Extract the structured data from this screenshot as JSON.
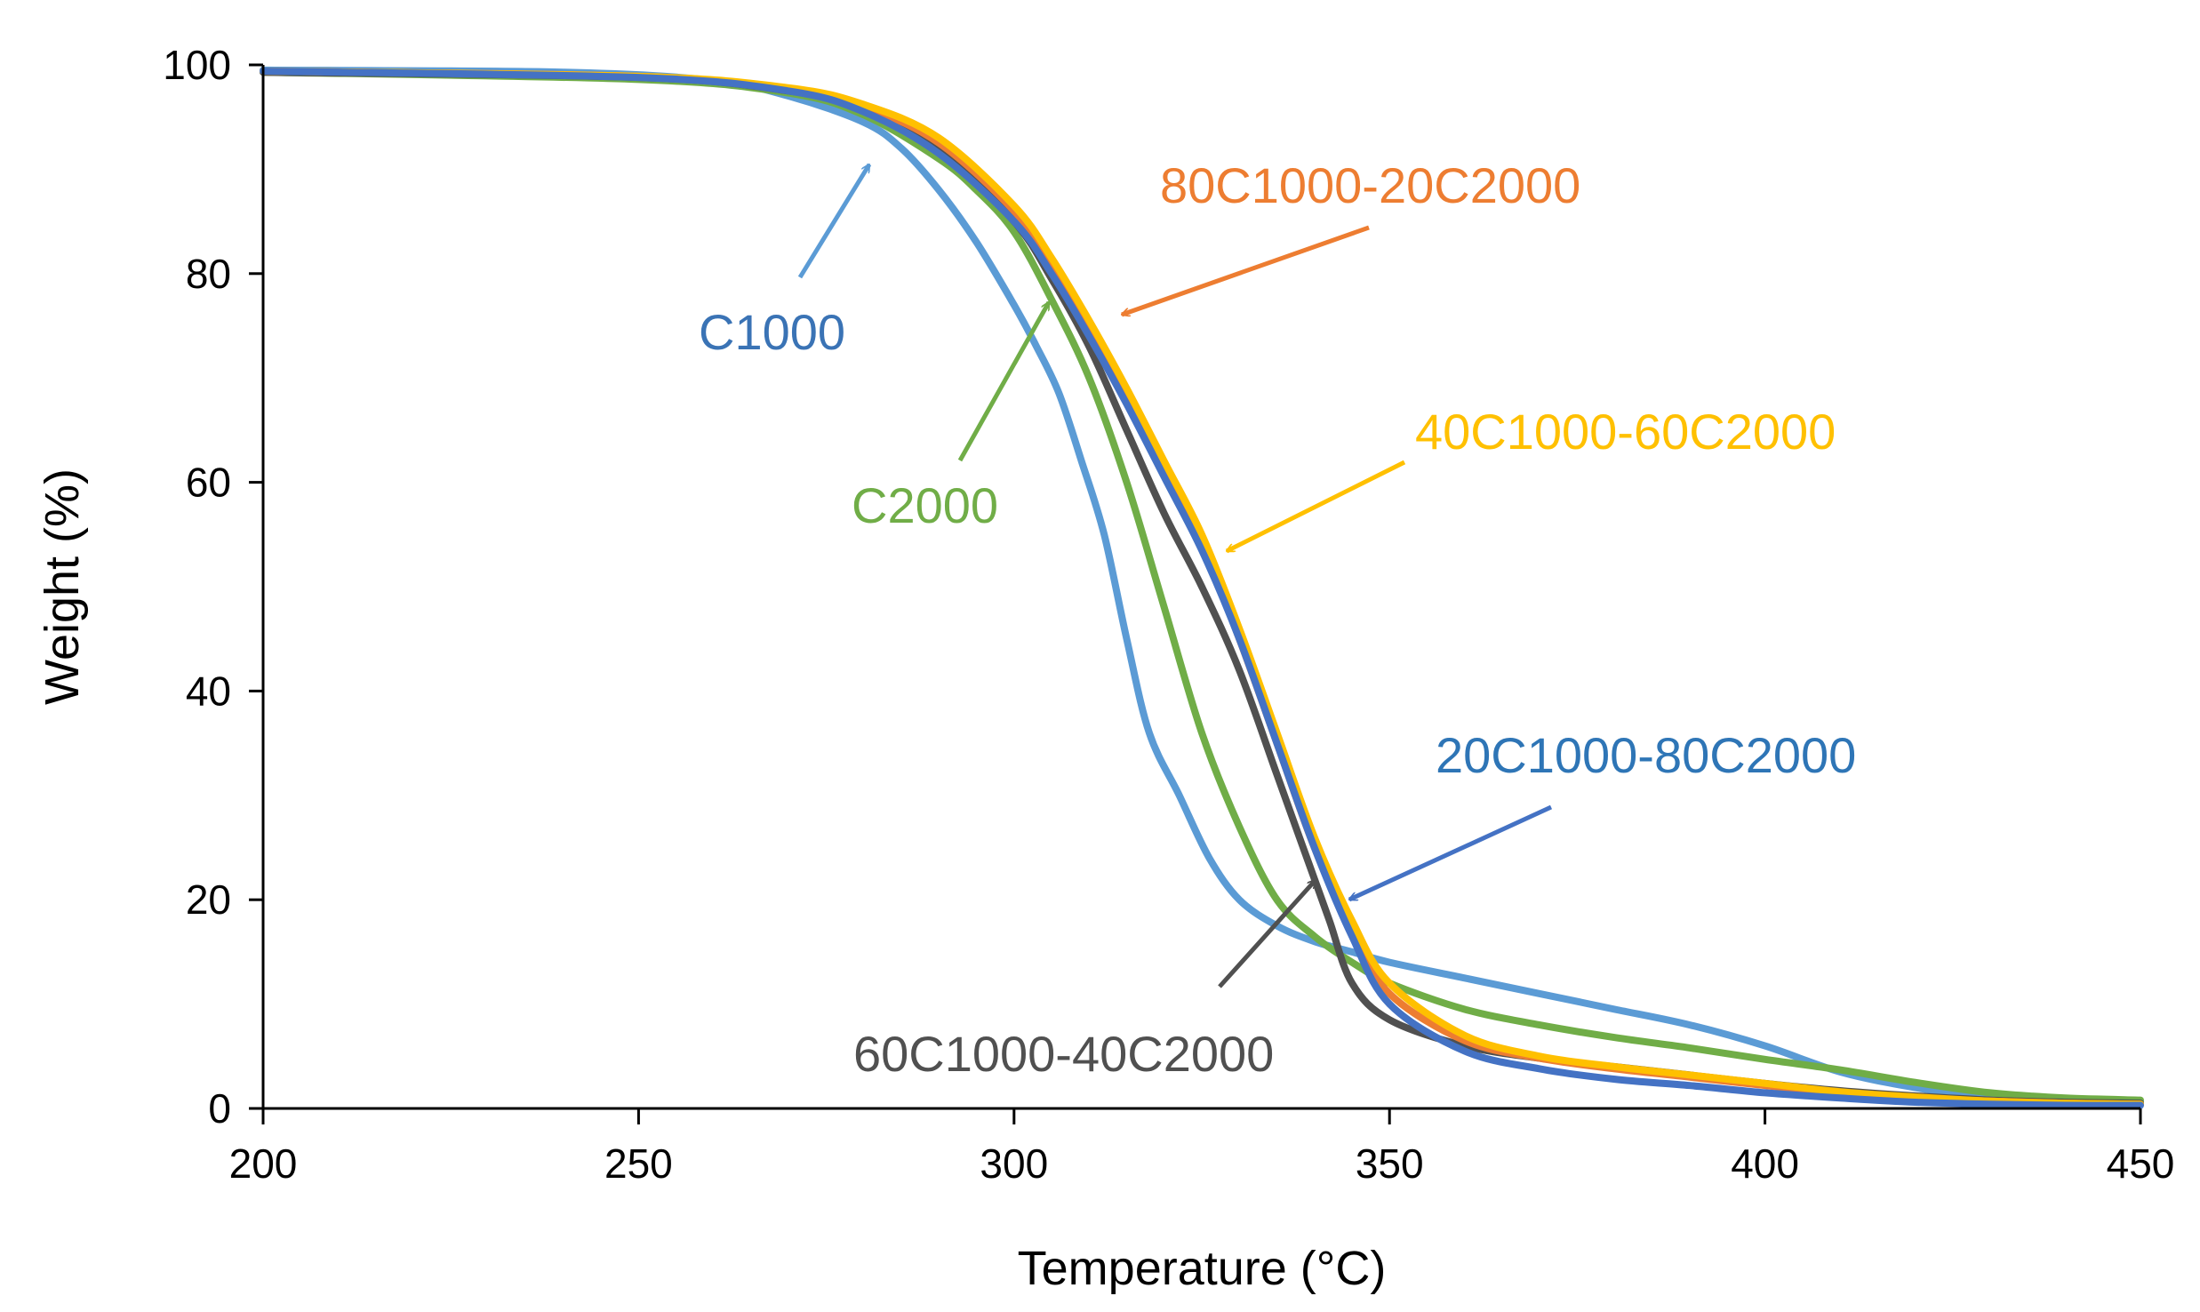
{
  "chart_data": {
    "type": "line",
    "xlabel": "Temperature  (°C)",
    "ylabel": "Weight (%)",
    "xlim": [
      200,
      450
    ],
    "ylim": [
      0,
      100
    ],
    "xticks": [
      200,
      250,
      300,
      350,
      400,
      450
    ],
    "yticks": [
      0,
      20,
      40,
      60,
      80,
      100
    ],
    "grid": false,
    "legend": "none (series labeled inline with arrows)",
    "series": [
      {
        "name": "C1000",
        "color": "#5B9BD5",
        "label_color": "#3A73B5",
        "x": [
          200,
          240,
          260,
          270,
          280,
          285,
          290,
          295,
          300,
          303,
          306,
          309,
          312,
          315,
          318,
          322,
          326,
          330,
          335,
          340,
          345,
          350,
          360,
          370,
          380,
          390,
          400,
          410,
          420,
          430,
          440,
          450
        ],
        "y": [
          99.5,
          99.3,
          98.5,
          97.0,
          94.5,
          92.0,
          88.0,
          83.0,
          77.0,
          73.0,
          68.5,
          62.0,
          55.0,
          45.0,
          36.0,
          30.0,
          24.0,
          20.0,
          17.5,
          16.0,
          15.0,
          14.0,
          12.5,
          11.0,
          9.5,
          8.0,
          6.0,
          3.5,
          2.0,
          1.0,
          0.7,
          0.6
        ]
      },
      {
        "name": "C2000",
        "color": "#70AD47",
        "label_color": "#70AD47",
        "x": [
          200,
          250,
          270,
          280,
          290,
          295,
          300,
          305,
          310,
          315,
          320,
          325,
          330,
          335,
          340,
          345,
          350,
          360,
          370,
          380,
          390,
          400,
          410,
          420,
          430,
          440,
          450
        ],
        "y": [
          99.3,
          98.6,
          97.3,
          95.2,
          91.0,
          88.0,
          84.0,
          77.5,
          70.0,
          60.0,
          48.0,
          36.0,
          27.0,
          20.0,
          16.5,
          14.0,
          12.0,
          9.5,
          8.0,
          6.8,
          5.8,
          4.7,
          3.7,
          2.5,
          1.5,
          1.0,
          0.8
        ]
      },
      {
        "name": "60C1000-40C2000",
        "color": "#505050",
        "label_color": "#505050",
        "x": [
          200,
          250,
          270,
          280,
          290,
          300,
          305,
          310,
          315,
          320,
          325,
          330,
          335,
          338,
          340,
          342,
          345,
          350,
          360,
          370,
          380,
          390,
          400,
          410,
          420,
          430,
          440,
          450
        ],
        "y": [
          99.3,
          98.8,
          97.5,
          95.8,
          92.0,
          85.0,
          79.5,
          73.0,
          65.0,
          57.0,
          50.0,
          42.0,
          32.0,
          26.0,
          22.0,
          18.0,
          12.0,
          8.5,
          6.0,
          4.8,
          4.0,
          3.2,
          2.4,
          1.7,
          1.2,
          0.8,
          0.6,
          0.5
        ]
      },
      {
        "name": "80C1000-20C2000",
        "color": "#ED7D31",
        "label_color": "#ED7D31",
        "x": [
          200,
          250,
          270,
          280,
          290,
          300,
          305,
          310,
          315,
          320,
          325,
          330,
          335,
          340,
          345,
          350,
          360,
          370,
          380,
          390,
          400,
          410,
          420,
          430,
          440,
          450
        ],
        "y": [
          99.4,
          98.9,
          97.7,
          96.0,
          92.5,
          86.0,
          81.0,
          75.0,
          68.5,
          61.5,
          54.0,
          45.0,
          35.0,
          25.0,
          17.0,
          11.0,
          6.5,
          4.8,
          3.8,
          3.0,
          2.2,
          1.5,
          1.0,
          0.7,
          0.5,
          0.4
        ]
      },
      {
        "name": "40C1000-60C2000",
        "color": "#FFC000",
        "label_color": "#FFC000",
        "x": [
          200,
          250,
          270,
          280,
          290,
          300,
          305,
          310,
          315,
          320,
          325,
          330,
          335,
          340,
          345,
          350,
          360,
          370,
          380,
          390,
          400,
          410,
          420,
          430,
          440,
          450
        ],
        "y": [
          99.4,
          98.9,
          97.8,
          96.2,
          93.0,
          86.5,
          81.5,
          75.5,
          69.0,
          62.0,
          55.0,
          46.0,
          36.0,
          26.0,
          18.0,
          12.0,
          7.0,
          5.0,
          4.0,
          3.2,
          2.4,
          1.6,
          1.1,
          0.7,
          0.5,
          0.4
        ]
      },
      {
        "name": "20C1000-80C2000",
        "color": "#4472C4",
        "label_color": "#2E75B6",
        "x": [
          200,
          250,
          270,
          280,
          290,
          300,
          305,
          310,
          315,
          320,
          325,
          330,
          335,
          340,
          345,
          350,
          360,
          370,
          380,
          390,
          400,
          410,
          420,
          430,
          440,
          450
        ],
        "y": [
          99.4,
          98.8,
          97.5,
          95.5,
          91.5,
          85.0,
          80.0,
          74.0,
          67.5,
          60.5,
          53.5,
          45.0,
          35.0,
          25.0,
          16.5,
          10.0,
          5.5,
          3.8,
          2.8,
          2.2,
          1.5,
          1.0,
          0.6,
          0.4,
          0.3,
          0.3
        ]
      }
    ],
    "annotations": [
      {
        "series": "C1000",
        "text": "C1000",
        "pos": [
          315,
          75
        ],
        "arrow_from": [
          296,
          82.5
        ],
        "arrow_to": [
          305,
          90.5
        ]
      },
      {
        "series": "C2000",
        "text": "C2000",
        "pos": [
          372,
          58
        ],
        "arrow_from": [
          318,
          62.0
        ],
        "arrow_to": [
          333,
          77.5
        ]
      },
      {
        "series": "80C1000-20C2000",
        "text": "80C1000-20C2000",
        "pos": [
          570,
          86
        ],
        "arrow_from": [
          530,
          84.0
        ],
        "arrow_to": [
          468,
          76.0
        ]
      },
      {
        "series": "40C1000-60C2000",
        "text": "40C1000-60C2000",
        "pos": [
          726,
          57
        ],
        "arrow_from": [
          685,
          54.0
        ],
        "arrow_to": [
          610,
          46.5
        ]
      },
      {
        "series": "20C1000-80C2000",
        "text": "20C1000-80C2000",
        "pos": [
          770,
          33
        ],
        "arrow_from": [
          740,
          28.5
        ],
        "arrow_to": [
          652,
          19.5
        ]
      },
      {
        "series": "60C1000-40C2000",
        "text": "60C1000-40C2000",
        "pos": [
          558,
          1.5
        ],
        "arrow_from": [
          585,
          11.5
        ],
        "arrow_to": [
          633,
          21.5
        ]
      }
    ]
  }
}
